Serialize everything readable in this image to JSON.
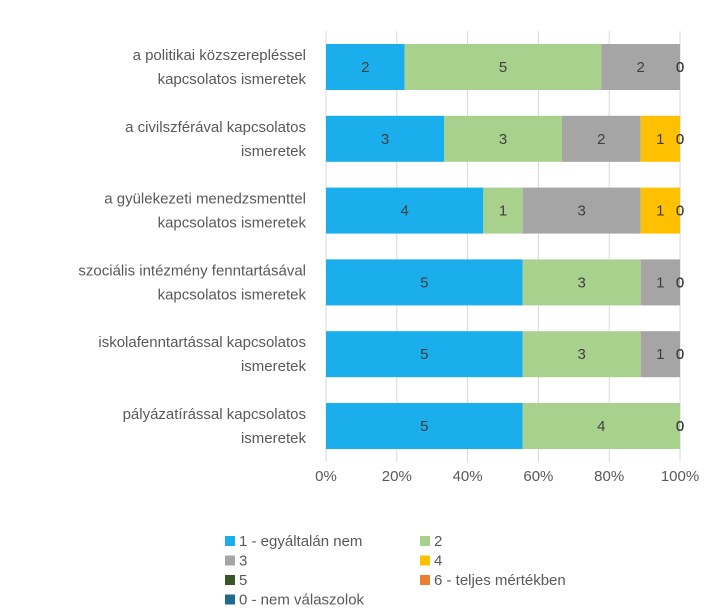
{
  "chart_data": {
    "type": "stacked_barh",
    "stacking": "percent",
    "categories": [
      [
        "a politikai közszerepléssel",
        "kapcsolatos ismeretek"
      ],
      [
        "a civilszférával kapcsolatos",
        "ismeretek"
      ],
      [
        "a gyülekezeti menedzsmenttel",
        "kapcsolatos ismeretek"
      ],
      [
        "szociális intézmény fenntartásával",
        "kapcsolatos ismeretek"
      ],
      [
        "iskolafenntartással kapcsolatos",
        "ismeretek"
      ],
      [
        "pályázatírással kapcsolatos",
        "ismeretek"
      ]
    ],
    "series": [
      {
        "name": "1 - egyáltalán nem",
        "color": "#1aaeec",
        "values": [
          2,
          3,
          4,
          5,
          5,
          5
        ]
      },
      {
        "name": "2",
        "color": "#a9d18e",
        "values": [
          5,
          3,
          1,
          3,
          3,
          4
        ]
      },
      {
        "name": "3",
        "color": "#a5a5a5",
        "values": [
          2,
          2,
          3,
          1,
          1,
          0
        ]
      },
      {
        "name": "4",
        "color": "#ffc000",
        "values": [
          0,
          1,
          1,
          0,
          0,
          0
        ]
      },
      {
        "name": "5",
        "color": "#375623",
        "values": [
          0,
          0,
          0,
          0,
          0,
          0
        ]
      },
      {
        "name": "6 - teljes mértékben",
        "color": "#ed7d31",
        "values": [
          0,
          0,
          0,
          0,
          0,
          0
        ]
      },
      {
        "name": "0 - nem válaszolok",
        "color": "#1f6b8f",
        "values": [
          0,
          0,
          0,
          0,
          0,
          0
        ]
      }
    ],
    "xlim": [
      0,
      100
    ],
    "xticks": [
      {
        "value": 0,
        "label": "0%"
      },
      {
        "value": 20,
        "label": "20%"
      },
      {
        "value": 40,
        "label": "40%"
      },
      {
        "value": 60,
        "label": "60%"
      },
      {
        "value": 80,
        "label": "80%"
      },
      {
        "value": 100,
        "label": "100%"
      }
    ],
    "grid": true,
    "legend": "bottom"
  }
}
